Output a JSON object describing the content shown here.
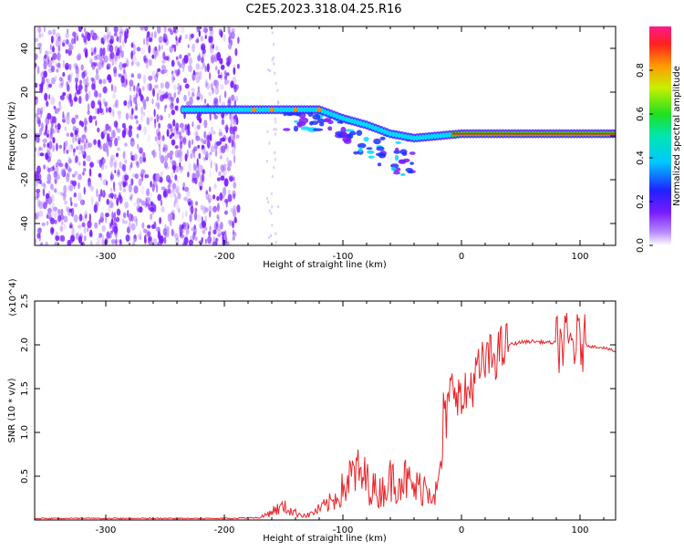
{
  "title": "C2E5.2023.318.04.25.R16",
  "colors": {
    "scatter": "#7a1cff",
    "snr_line": "#e8252a",
    "band_green": "#22dd22",
    "band_red": "#ff2020"
  },
  "chart_data": [
    {
      "type": "heatmap",
      "xlabel": "Height of straight line (km)",
      "ylabel": "Frequency (Hz)",
      "xlim": [
        -360,
        130
      ],
      "ylim": [
        -50,
        50
      ],
      "xticks": [
        -300,
        -200,
        -100,
        0,
        100
      ],
      "xtick_labels": [
        "-300",
        "-200",
        "-100",
        "0",
        "100"
      ],
      "yticks": [
        -40,
        -20,
        0,
        20,
        40
      ],
      "ytick_labels": [
        "-40",
        "-20",
        "0",
        "20",
        "40"
      ],
      "colorbar": {
        "label": "Normalized spectral amplitude",
        "range": [
          0,
          1
        ],
        "ticks": [
          0.0,
          0.2,
          0.4,
          0.6,
          0.8
        ],
        "tick_labels": [
          "0.0",
          "0.2",
          "0.4",
          "0.6",
          "0.8"
        ],
        "colormap": "rainbow"
      },
      "ridge": {
        "x": [
          -235,
          -200,
          -175,
          -150,
          -120,
          -100,
          -80,
          -60,
          -40,
          -20,
          0,
          50,
          100,
          130
        ],
        "y": [
          12,
          12,
          12,
          12,
          12,
          8,
          5,
          1,
          -1,
          0,
          1,
          1,
          1,
          1
        ]
      },
      "grid": false
    },
    {
      "type": "line",
      "xlabel": "Height of straight line (km)",
      "ylabel": "SNR (10 * v/v)",
      "scale_label": "(x10^4)",
      "xlim": [
        -360,
        130
      ],
      "ylim": [
        0,
        2.5
      ],
      "xticks": [
        -300,
        -200,
        -100,
        0,
        100
      ],
      "xtick_labels": [
        "-300",
        "-200",
        "-100",
        "0",
        "100"
      ],
      "yticks": [
        0.5,
        1.0,
        1.5,
        2.0,
        2.5
      ],
      "ytick_labels": [
        "0.5",
        "1.0",
        "1.5",
        "2.0",
        "2.5"
      ],
      "x": [
        -360,
        -300,
        -250,
        -200,
        -170,
        -160,
        -150,
        -140,
        -130,
        -120,
        -110,
        -100,
        -90,
        -80,
        -70,
        -60,
        -50,
        -40,
        -30,
        -20,
        -15,
        -10,
        -5,
        0,
        10,
        20,
        30,
        40,
        50,
        60,
        70,
        80,
        90,
        100,
        110,
        120,
        130
      ],
      "y": [
        0.01,
        0.01,
        0.01,
        0.01,
        0.02,
        0.1,
        0.15,
        0.08,
        0.05,
        0.12,
        0.2,
        0.35,
        0.55,
        0.45,
        0.3,
        0.45,
        0.5,
        0.35,
        0.4,
        0.3,
        1.0,
        1.4,
        1.6,
        1.3,
        1.6,
        1.8,
        1.9,
        2.0,
        2.03,
        2.04,
        2.03,
        2.02,
        2.02,
        2.02,
        1.98,
        1.97,
        1.92
      ],
      "grid": false
    }
  ]
}
